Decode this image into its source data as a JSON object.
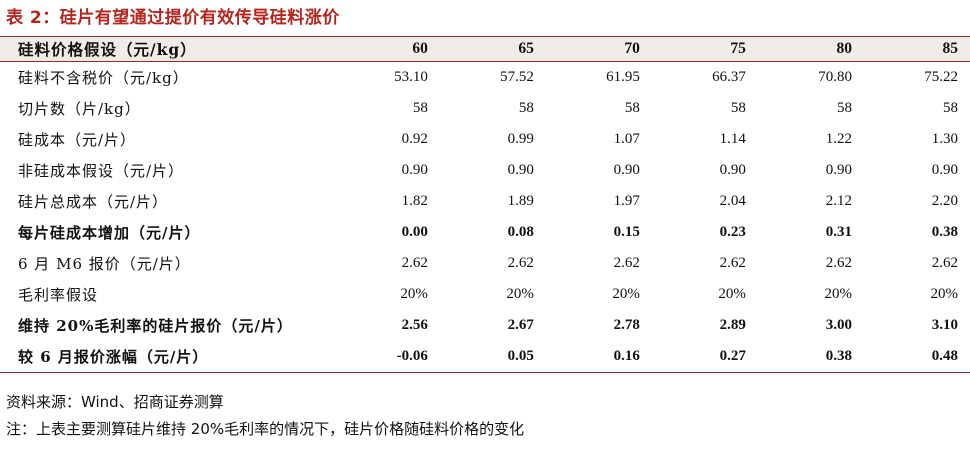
{
  "title": "表 2：硅片有望通过提价有效传导硅料涨价",
  "table": {
    "header": [
      "硅料价格假设（元/kg）",
      "60",
      "65",
      "70",
      "75",
      "80",
      "85"
    ],
    "rows": [
      {
        "label": "硅料不含税价（元/kg）",
        "values": [
          "53.10",
          "57.52",
          "61.95",
          "66.37",
          "70.80",
          "75.22"
        ],
        "bold": false
      },
      {
        "label": "切片数（片/kg）",
        "values": [
          "58",
          "58",
          "58",
          "58",
          "58",
          "58"
        ],
        "bold": false
      },
      {
        "label": "硅成本（元/片）",
        "values": [
          "0.92",
          "0.99",
          "1.07",
          "1.14",
          "1.22",
          "1.30"
        ],
        "bold": false
      },
      {
        "label": "非硅成本假设（元/片）",
        "values": [
          "0.90",
          "0.90",
          "0.90",
          "0.90",
          "0.90",
          "0.90"
        ],
        "bold": false
      },
      {
        "label": "硅片总成本（元/片）",
        "values": [
          "1.82",
          "1.89",
          "1.97",
          "2.04",
          "2.12",
          "2.20"
        ],
        "bold": false
      },
      {
        "label": "每片硅成本增加（元/片）",
        "values": [
          "0.00",
          "0.08",
          "0.15",
          "0.23",
          "0.31",
          "0.38"
        ],
        "bold": true
      },
      {
        "label": "6 月 M6 报价（元/片）",
        "values": [
          "2.62",
          "2.62",
          "2.62",
          "2.62",
          "2.62",
          "2.62"
        ],
        "bold": false
      },
      {
        "label": "毛利率假设",
        "values": [
          "20%",
          "20%",
          "20%",
          "20%",
          "20%",
          "20%"
        ],
        "bold": false
      },
      {
        "label": "维持 20%毛利率的硅片报价（元/片）",
        "values": [
          "2.56",
          "2.67",
          "2.78",
          "2.89",
          "3.00",
          "3.10"
        ],
        "bold": true
      },
      {
        "label": "较 6 月报价涨幅（元/片）",
        "values": [
          "-0.06",
          "0.05",
          "0.16",
          "0.27",
          "0.38",
          "0.48"
        ],
        "bold": true
      }
    ]
  },
  "source": "资料来源：Wind、招商证券测算",
  "note": "注：上表主要测算硅片维持 20%毛利率的情况下，硅片价格随硅料价格的变化"
}
